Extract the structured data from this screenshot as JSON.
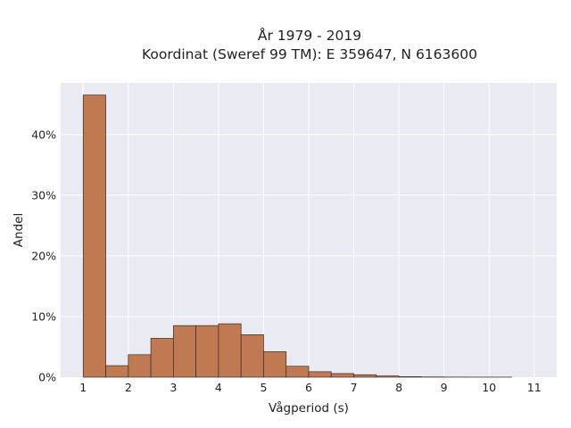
{
  "chart_data": {
    "type": "bar",
    "title_line1": "År 1979 - 2019",
    "title_line2": "Koordinat (Sweref 99 TM): E 359647, N 6163600",
    "xlabel": "Vågperiod (s)",
    "ylabel": "Andel",
    "xlim": [
      0.5,
      11.5
    ],
    "ylim": [
      0,
      48.5
    ],
    "x_ticks": [
      1,
      2,
      3,
      4,
      5,
      6,
      7,
      8,
      9,
      10,
      11
    ],
    "x_tick_labels": [
      "1",
      "2",
      "3",
      "4",
      "5",
      "6",
      "7",
      "8",
      "9",
      "10",
      "11"
    ],
    "y_ticks": [
      0,
      10,
      20,
      30,
      40
    ],
    "y_tick_labels": [
      "0%",
      "10%",
      "20%",
      "30%",
      "40%"
    ],
    "bin_width": 0.5,
    "bin_starts": [
      1,
      1.5,
      2,
      2.5,
      3,
      3.5,
      4,
      4.5,
      5,
      5.5,
      6,
      6.5,
      7,
      7.5,
      8,
      8.5,
      9,
      9.5,
      10
    ],
    "values": [
      46.5,
      1.9,
      3.7,
      6.4,
      8.5,
      8.5,
      8.8,
      7.0,
      4.2,
      1.8,
      0.9,
      0.6,
      0.4,
      0.2,
      0.08,
      0.04,
      0.02,
      0.01,
      0.01
    ],
    "grid": true,
    "colors": {
      "background": "#eaeaf2",
      "bar_fill": "#bf7a53",
      "bar_edge": "#3a2a22",
      "grid": "#ffffff"
    }
  }
}
